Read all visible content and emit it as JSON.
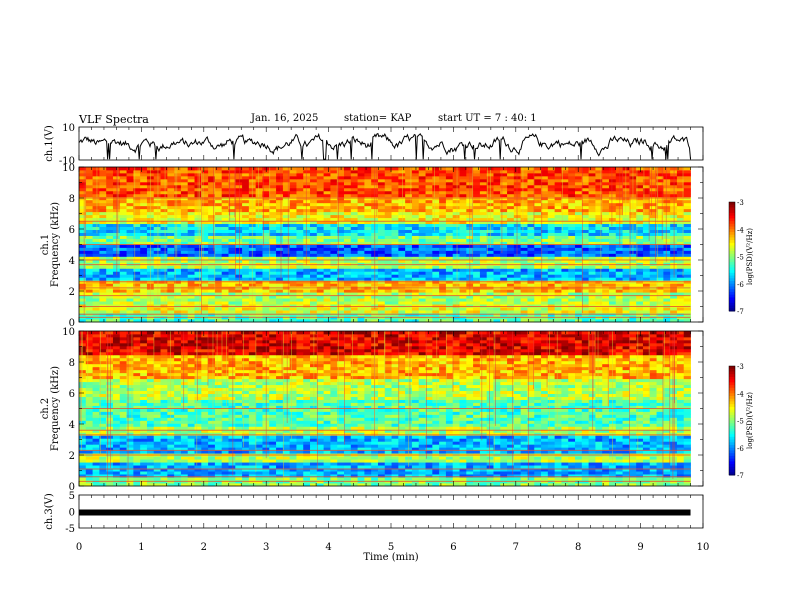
{
  "header": {
    "title": "VLF Spectra",
    "date": "Jan. 16, 2025",
    "station": "station= KAP",
    "start_ut": "start UT =  7 : 40: 1"
  },
  "chart_data": [
    {
      "name": "ch1-voltage",
      "type": "line",
      "ylabel": "ch.1(V)",
      "ylim": [
        -10,
        10
      ],
      "yticks": [
        "10",
        "-10"
      ],
      "xlim": [
        0,
        10
      ],
      "description_values": "noisy waveform oscillating roughly between -5 and 5 V over 0-9.8 min",
      "x_end": 9.8
    },
    {
      "name": "ch1-spectrogram",
      "type": "heatmap",
      "ylabel": "ch.1\nFrequency (kHz)",
      "ylim": [
        0,
        10
      ],
      "yticks": [
        "0",
        "2",
        "4",
        "6",
        "8",
        "10"
      ],
      "xlim": [
        0,
        10
      ],
      "x_end": 9.8,
      "colorbar": {
        "label": "log(PSD)(V²/Hz)",
        "range": [
          -7,
          -3
        ],
        "ticks": [
          "-3",
          "-4",
          "-5",
          "-6",
          "-7"
        ]
      },
      "bands": [
        {
          "from": 0.0,
          "to": 0.5,
          "level": 0.45
        },
        {
          "from": 0.5,
          "to": 1.2,
          "level": 0.6
        },
        {
          "from": 1.2,
          "to": 2.0,
          "level": 0.55
        },
        {
          "from": 2.0,
          "to": 2.6,
          "level": 0.68
        },
        {
          "from": 2.6,
          "to": 3.5,
          "level": 0.3
        },
        {
          "from": 3.5,
          "to": 4.2,
          "level": 0.55
        },
        {
          "from": 4.2,
          "to": 5.0,
          "level": 0.22
        },
        {
          "from": 5.0,
          "to": 5.6,
          "level": 0.5
        },
        {
          "from": 5.6,
          "to": 6.4,
          "level": 0.35
        },
        {
          "from": 6.4,
          "to": 7.2,
          "level": 0.62
        },
        {
          "from": 7.2,
          "to": 8.0,
          "level": 0.7
        },
        {
          "from": 8.0,
          "to": 10.0,
          "level": 0.8
        }
      ],
      "lines_khz": [
        0.3,
        0.5,
        1.0,
        1.7,
        2.2,
        2.6,
        3.7,
        4.0,
        5.0,
        6.5,
        8.0
      ]
    },
    {
      "name": "ch2-spectrogram",
      "type": "heatmap",
      "ylabel": "ch.2\nFrequency (kHz)",
      "ylim": [
        0,
        10
      ],
      "yticks": [
        "0",
        "2",
        "4",
        "6",
        "8",
        "10"
      ],
      "xlim": [
        0,
        10
      ],
      "x_end": 9.8,
      "colorbar": {
        "label": "log(PSD)(V²/Hz)",
        "range": [
          -7,
          -3
        ],
        "ticks": [
          "-3",
          "-4",
          "-5",
          "-6",
          "-7"
        ]
      },
      "bands": [
        {
          "from": 0.0,
          "to": 0.5,
          "level": 0.5
        },
        {
          "from": 0.5,
          "to": 1.6,
          "level": 0.3
        },
        {
          "from": 1.6,
          "to": 2.2,
          "level": 0.55
        },
        {
          "from": 2.2,
          "to": 3.3,
          "level": 0.3
        },
        {
          "from": 3.3,
          "to": 3.8,
          "level": 0.55
        },
        {
          "from": 3.8,
          "to": 5.5,
          "level": 0.45
        },
        {
          "from": 5.5,
          "to": 7.0,
          "level": 0.55
        },
        {
          "from": 7.0,
          "to": 8.4,
          "level": 0.7
        },
        {
          "from": 8.4,
          "to": 10.0,
          "level": 0.9
        }
      ],
      "lines_khz": [
        0.3,
        0.6,
        1.1,
        2.0,
        2.3,
        3.3,
        3.6,
        5.0
      ]
    },
    {
      "name": "ch3-voltage",
      "type": "line",
      "ylabel": "ch.3(V)",
      "ylim": [
        -5,
        5
      ],
      "yticks": [
        "5",
        "0",
        "-5"
      ],
      "xlim": [
        0,
        10
      ],
      "x_end": 9.8,
      "constant_value": -0.3
    }
  ],
  "xaxis": {
    "label": "Time (min)",
    "ticks": [
      "0",
      "1",
      "2",
      "3",
      "4",
      "5",
      "6",
      "7",
      "8",
      "9",
      "10"
    ]
  }
}
